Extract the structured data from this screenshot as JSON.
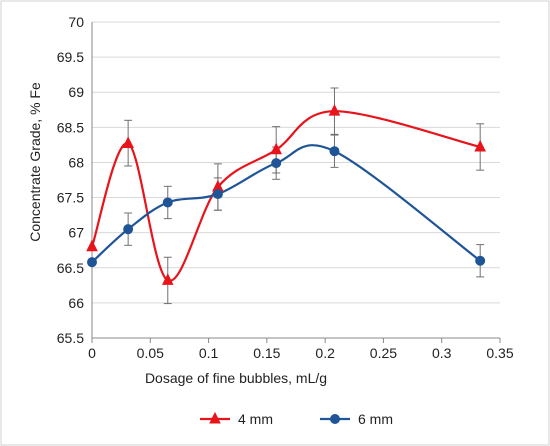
{
  "chart_data": {
    "type": "line",
    "xlabel": "Dosage of fine bubbles, mL/g",
    "ylabel": "Concentrate Grade, % Fe",
    "xlim": [
      0,
      0.35
    ],
    "ylim": [
      65.5,
      70
    ],
    "xticks": [
      0,
      0.05,
      0.1,
      0.15,
      0.2,
      0.25,
      0.3,
      0.35
    ],
    "xtick_labels": [
      "0",
      "0.05",
      "0.1",
      "0.15",
      "0.2",
      "0.25",
      "0.3",
      "0.35"
    ],
    "yticks": [
      65.5,
      66,
      66.5,
      67,
      67.5,
      68,
      68.5,
      69,
      69.5,
      70
    ],
    "ytick_labels": [
      "65.5",
      "66",
      "66.5",
      "67",
      "67.5",
      "68",
      "68.5",
      "69",
      "69.5",
      "70"
    ],
    "grid": "horizontal",
    "legend_position": "bottom",
    "smooth_lines": true,
    "series": [
      {
        "name": "4 mm",
        "color": "#e8141c",
        "marker": "triangle",
        "x": [
          0,
          0.031,
          0.065,
          0.108,
          0.158,
          0.208,
          0.333
        ],
        "y": [
          66.8,
          68.27,
          66.32,
          67.65,
          68.18,
          68.73,
          68.22
        ],
        "err_low": [
          66.8,
          67.95,
          65.99,
          67.32,
          67.85,
          68.4,
          67.89
        ],
        "err_high": [
          66.8,
          68.6,
          66.65,
          67.98,
          68.51,
          69.06,
          68.55
        ]
      },
      {
        "name": "6 mm",
        "color": "#1f5597",
        "marker": "circle",
        "x": [
          0,
          0.031,
          0.065,
          0.108,
          0.158,
          0.208,
          0.333
        ],
        "y": [
          66.58,
          67.05,
          67.43,
          67.55,
          67.99,
          68.16,
          66.6
        ],
        "err_low": [
          66.58,
          66.82,
          67.2,
          67.32,
          67.76,
          67.93,
          66.37
        ],
        "err_high": [
          66.58,
          67.28,
          67.66,
          67.78,
          68.22,
          68.39,
          66.83
        ]
      }
    ]
  }
}
